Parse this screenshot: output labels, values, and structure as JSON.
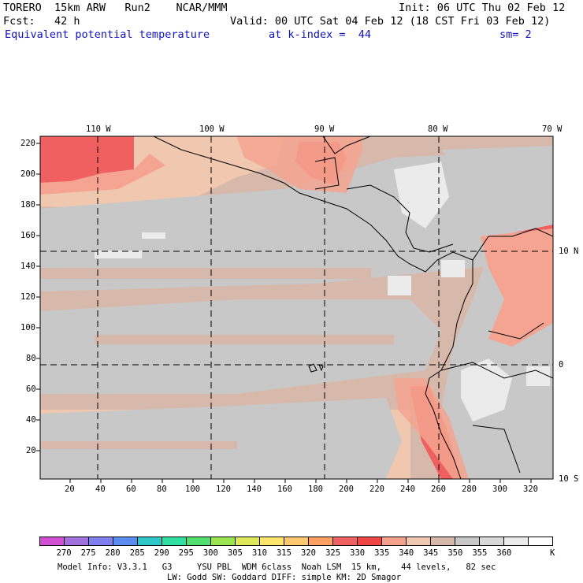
{
  "header": {
    "model": "TORERO  15km ARW   Run2    NCAR/MMM",
    "init": "Init: 06 UTC Thu 02 Feb 12",
    "fcst": "Fcst:   42 h",
    "valid": "Valid: 00 UTC Sat 04 Feb 12 (18 CST Fri 03 Feb 12)",
    "field": "Equivalent potential temperature",
    "level": "at k-index =  44",
    "smooth": "sm= 2"
  },
  "map": {
    "lon_labels": [
      "110 W",
      "100 W",
      "90 W",
      "80 W",
      "70 W"
    ],
    "lat_labels": [
      "10 N",
      "0",
      "10 S"
    ],
    "y_ticks": [
      "220",
      "200",
      "180",
      "160",
      "140",
      "120",
      "100",
      "80",
      "60",
      "40",
      "20"
    ],
    "x_ticks": [
      "20",
      "40",
      "60",
      "80",
      "100",
      "120",
      "140",
      "160",
      "180",
      "200",
      "220",
      "240",
      "260",
      "280",
      "300",
      "320"
    ],
    "colors": {
      "c340": "#f0c8b0",
      "c345": "#d7b9ab",
      "c350": "#c8c8c8",
      "c355": "#ebebeb",
      "c330": "#f06060",
      "c325": "#ff8466",
      "c320": "#f4a490",
      "c315": "#ffc8b4",
      "gray2": "#bebebe"
    }
  },
  "colorbar": {
    "colors": [
      "#d24ed2",
      "#a070dc",
      "#8080f0",
      "#5c8cf0",
      "#2ec8c8",
      "#30e0a0",
      "#50e070",
      "#9ae450",
      "#dfe858",
      "#ffe46e",
      "#ffc86e",
      "#ff9f64",
      "#f06060",
      "#f04545",
      "#f4a08a",
      "#f0c8b0",
      "#d7b9ab",
      "#c8c8c8",
      "#d8d8d8",
      "#ebebeb",
      "#ffffff"
    ],
    "labels": [
      "270",
      "275",
      "280",
      "285",
      "290",
      "295",
      "300",
      "305",
      "310",
      "315",
      "320",
      "325",
      "330",
      "335",
      "340",
      "345",
      "350",
      "355",
      "360"
    ],
    "unit": "K"
  },
  "footer": {
    "line1": "Model Info: V3.3.1   G3     YSU PBL  WDM 6class  Noah LSM  15 km,    44 levels,   82 sec",
    "line2": "LW: Godd SW: Goddard DIFF: simple KM: 2D Smagor"
  }
}
